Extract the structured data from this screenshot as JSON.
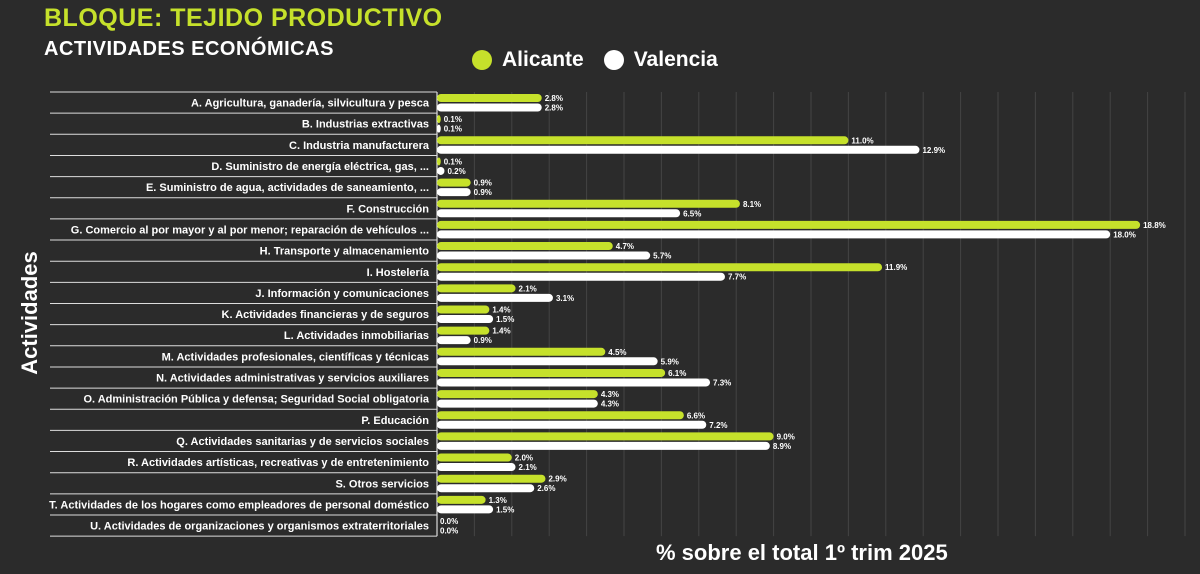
{
  "header": {
    "title": "BLOQUE: TEJIDO PRODUCTIVO",
    "subtitle": "ACTIVIDADES ECONÓMICAS"
  },
  "chart_data": {
    "type": "bar",
    "orientation": "horizontal",
    "xlabel": "% sobre el total 1º trim 2025",
    "ylabel": "Actividades",
    "xlim": [
      0,
      20
    ],
    "grid": true,
    "legend_position": "top",
    "colors": {
      "Alicante": "#c6e12b",
      "Valencia": "#ffffff",
      "background": "#2b2b2b"
    },
    "categories": [
      "A. Agricultura, ganadería, silvicultura y pesca",
      "B. Industrias extractivas",
      "C. Industria manufacturera",
      "D. Suministro de energía eléctrica, gas, ...",
      "E. Suministro de agua, actividades de saneamiento, ...",
      "F. Construcción",
      "G. Comercio al por mayor y al por menor; reparación de vehículos ...",
      "H. Transporte y almacenamiento",
      "I. Hostelería",
      "J. Información y comunicaciones",
      "K. Actividades financieras y de seguros",
      "L. Actividades inmobiliarias",
      "M. Actividades profesionales, científicas y técnicas",
      "N. Actividades administrativas y servicios auxiliares",
      "O. Administración Pública y defensa; Seguridad Social obligatoria",
      "P. Educación",
      "Q. Actividades sanitarias y de servicios sociales",
      "R. Actividades artísticas, recreativas y de entretenimiento",
      "S. Otros servicios",
      "T. Actividades de los hogares como empleadores de personal doméstico",
      "U. Actividades de organizaciones y organismos extraterritoriales"
    ],
    "series": [
      {
        "name": "Alicante",
        "values": [
          2.8,
          0.1,
          11.0,
          0.1,
          0.9,
          8.1,
          18.8,
          4.7,
          11.9,
          2.1,
          1.4,
          1.4,
          4.5,
          6.1,
          4.3,
          6.6,
          9.0,
          2.0,
          2.9,
          1.3,
          0.0
        ]
      },
      {
        "name": "Valencia",
        "values": [
          2.8,
          0.1,
          12.9,
          0.2,
          0.9,
          6.5,
          18.0,
          5.7,
          7.7,
          3.1,
          1.5,
          0.9,
          5.9,
          7.3,
          4.3,
          7.2,
          8.9,
          2.1,
          2.6,
          1.5,
          0.0
        ]
      }
    ]
  }
}
